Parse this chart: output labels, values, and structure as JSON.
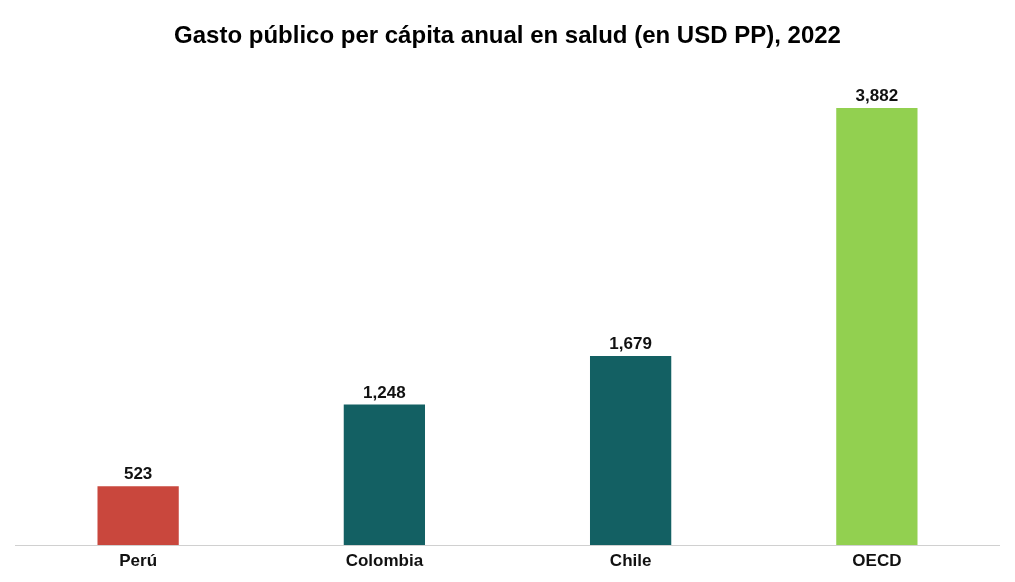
{
  "chart_data": {
    "type": "bar",
    "title": "Gasto público per cápita anual en salud (en USD PP), 2022",
    "categories": [
      "Perú",
      "Colombia",
      "Chile",
      "OECD"
    ],
    "values": [
      523,
      1248,
      1679,
      3882
    ],
    "value_labels": [
      "523",
      "1,248",
      "1,679",
      "3,882"
    ],
    "colors": [
      "#c9473d",
      "#136063",
      "#136063",
      "#92d050"
    ],
    "tick_labels": "x"
  }
}
